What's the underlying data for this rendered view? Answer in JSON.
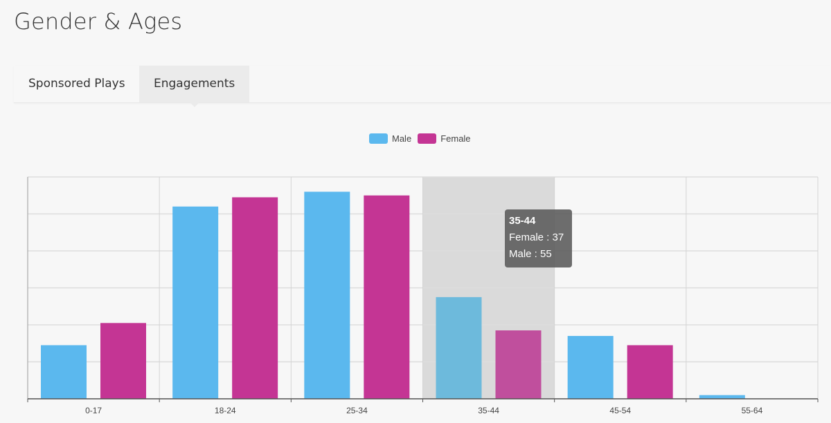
{
  "header": {
    "title": "Gender & Ages"
  },
  "tabs": [
    {
      "label": "Sponsored Plays",
      "active": false
    },
    {
      "label": "Engagements",
      "active": true
    }
  ],
  "legend": {
    "male": "Male",
    "female": "Female"
  },
  "tooltip": {
    "title": "35-44",
    "line1": "Female : 37",
    "line2": "Male : 55"
  },
  "chart_data": {
    "type": "bar",
    "categories": [
      "0-17",
      "18-24",
      "25-34",
      "35-44",
      "45-54",
      "55-64"
    ],
    "series": [
      {
        "name": "Male",
        "color": "#5bb8ee",
        "values": [
          29,
          104,
          112,
          55,
          34,
          2
        ]
      },
      {
        "name": "Female",
        "color": "#c43594",
        "values": [
          41,
          109,
          110,
          37,
          29,
          0
        ]
      }
    ],
    "ylim": [
      0,
      120
    ],
    "grid": true,
    "legend_position": "top-center",
    "highlighted_category": "35-44"
  }
}
